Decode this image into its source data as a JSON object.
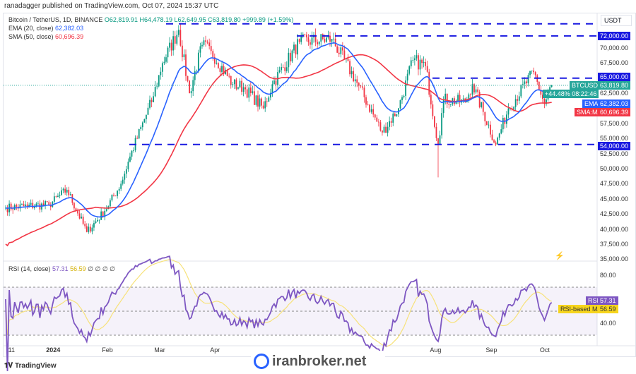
{
  "published": "ranadagger published on TradingView.com, Oct 07, 2024 15:37 UTC",
  "legend": {
    "symbol": "Bitcoin / TetherUS, 1D, BINANCE",
    "open": "O62,819.91",
    "high": "H64,478.19",
    "low": "L62,649.95",
    "close": "C63,819.80",
    "change": "+999.89 (+1.59%)",
    "ema_label": "EMA (20, close)",
    "ema_value": "62,382.03",
    "sma_label": "SMA (50, close)",
    "sma_value": "60,696.39"
  },
  "rsi_legend": {
    "label": "RSI (14, close)",
    "rsi_value": "57.31",
    "ma_value": "56.59",
    "extra": "∅ ∅ ∅ ∅"
  },
  "currency": "USDT",
  "tags": {
    "btc_label": "BTCUSDT",
    "btc_price": "63,819.80",
    "btc_pct": "+44.48%",
    "btc_timer": "08:22:46",
    "ema_label": "EMA",
    "ema_price": "62,382.03",
    "sma_label": "SMA:MA",
    "sma_price": "60,696.39",
    "l72": "72,000.00",
    "l65": "65,000.00",
    "l54": "54,000.00",
    "rsi_label": "RSI",
    "rsi_val": "57.31",
    "rsima_label": "RSI-based MA",
    "rsima_val": "56.59"
  },
  "footer": {
    "brand": "TradingView",
    "watermark": "iranbroker.net"
  },
  "chart_data": {
    "type": "line",
    "title": "Bitcoin / TetherUS, 1D, BINANCE",
    "ylim": [
      35000,
      74000
    ],
    "yticks": [
      "70,000.00",
      "67,500.00",
      "62,500.00",
      "57,500.00",
      "55,000.00",
      "52,500.00",
      "50,000.00",
      "47,500.00",
      "45,000.00",
      "42,500.00",
      "40,000.00",
      "37,500.00",
      "35,000.00"
    ],
    "ytick_values": [
      70000,
      67500,
      62500,
      57500,
      55000,
      52500,
      50000,
      47500,
      45000,
      42500,
      40000,
      37500,
      35000
    ],
    "xticks": [
      {
        "label": "11",
        "day": 3
      },
      {
        "label": "2024",
        "day": 24
      },
      {
        "label": "Feb",
        "day": 55
      },
      {
        "label": "Mar",
        "day": 84
      },
      {
        "label": "Apr",
        "day": 115
      },
      {
        "label": "Aug",
        "day": 237
      },
      {
        "label": "Sep",
        "day": 268
      },
      {
        "label": "Oct",
        "day": 298
      }
    ],
    "horizontal_levels": [
      74000,
      72000,
      65000,
      54000
    ],
    "price_path": [
      [
        0,
        43500
      ],
      [
        12,
        43800
      ],
      [
        24,
        44000
      ],
      [
        34,
        46500
      ],
      [
        45,
        39500
      ],
      [
        55,
        43000
      ],
      [
        64,
        47500
      ],
      [
        69,
        52000
      ],
      [
        82,
        62000
      ],
      [
        87,
        67500
      ],
      [
        96,
        73000
      ],
      [
        102,
        62500
      ],
      [
        109,
        70500
      ],
      [
        114,
        69500
      ],
      [
        126,
        64000
      ],
      [
        132,
        63500
      ],
      [
        143,
        60000
      ],
      [
        148,
        64000
      ],
      [
        163,
        71000
      ],
      [
        181,
        71500
      ],
      [
        194,
        64800
      ],
      [
        209,
        56000
      ],
      [
        218,
        60000
      ],
      [
        226,
        68000
      ],
      [
        233,
        67000
      ],
      [
        240,
        54000
      ],
      [
        243,
        61500
      ],
      [
        255,
        61000
      ],
      [
        259,
        64000
      ],
      [
        272,
        54000
      ],
      [
        279,
        60000
      ],
      [
        293,
        66000
      ],
      [
        299,
        60700
      ],
      [
        303,
        63820
      ]
    ],
    "rsi_levels": [
      70,
      50,
      30
    ],
    "rsi_yticks": [
      "80.00",
      "40.00"
    ],
    "rsi_last": 57.31,
    "rsi_ma_last": 56.59
  }
}
